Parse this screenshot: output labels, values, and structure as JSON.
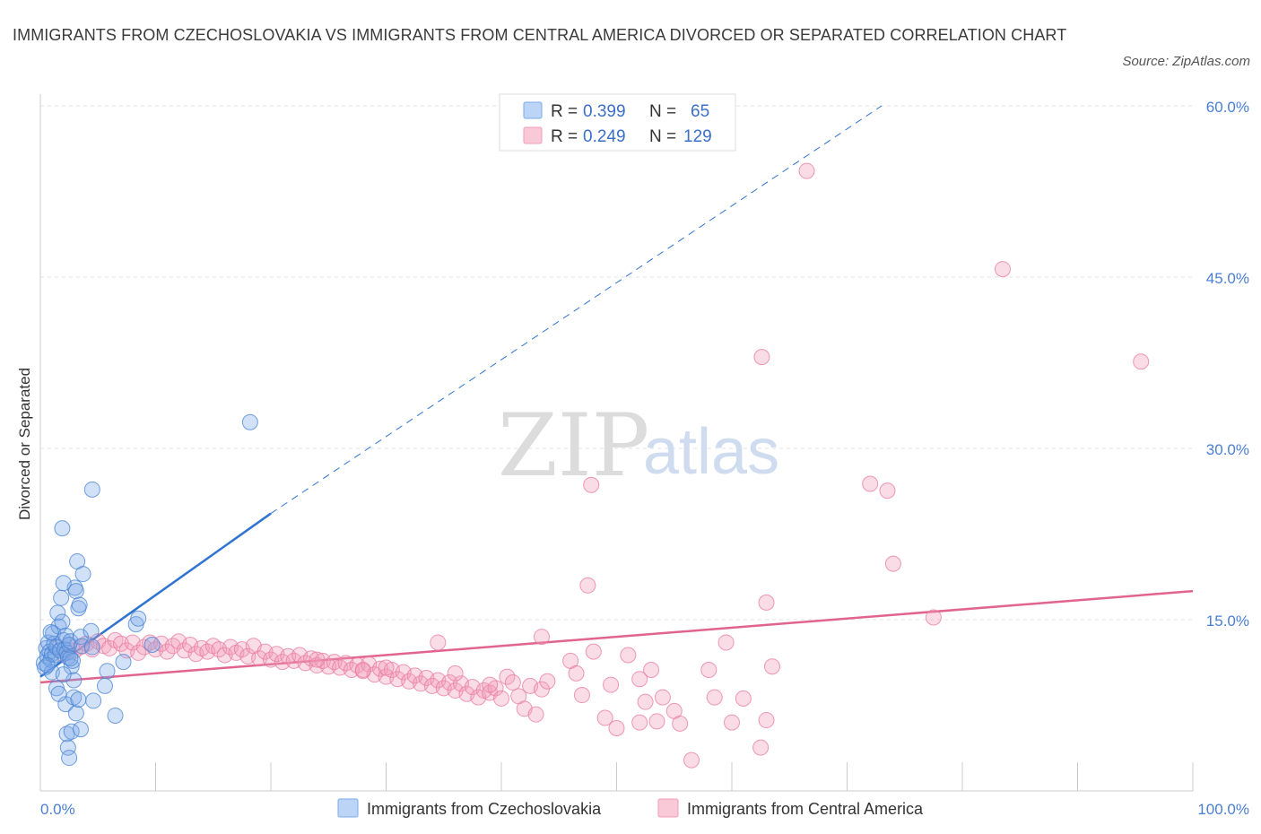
{
  "title": "IMMIGRANTS FROM CZECHOSLOVAKIA VS IMMIGRANTS FROM CENTRAL AMERICA DIVORCED OR SEPARATED CORRELATION CHART",
  "source": "Source: ZipAtlas.com",
  "watermark": {
    "zip": "ZIP",
    "atlas": "atlas"
  },
  "colors": {
    "blue": "#7aaae8",
    "blue_line": "#2f74d0",
    "pink": "#f29bb8",
    "pink_line": "#e0648f",
    "axis_label": "#4a7fd4"
  },
  "legend": {
    "r_label": "R =",
    "n_label": "N =",
    "series": [
      {
        "r": "0.399",
        "n": "65"
      },
      {
        "r": "0.249",
        "n": "129"
      }
    ]
  },
  "chart_data": {
    "type": "scatter",
    "title": "IMMIGRANTS FROM CZECHOSLOVAKIA VS IMMIGRANTS FROM CENTRAL AMERICA DIVORCED OR SEPARATED CORRELATION CHART",
    "xlabel": "",
    "ylabel": "Divorced or Separated",
    "xlim": [
      0,
      100
    ],
    "ylim": [
      0,
      60
    ],
    "x_tick_labels": [
      "0.0%",
      "100.0%"
    ],
    "y_ticks": [
      15,
      30,
      45,
      60
    ],
    "y_tick_labels": [
      "15.0%",
      "30.0%",
      "45.0%",
      "60.0%"
    ],
    "grid": "horizontal dashed",
    "legend_position": "top-center",
    "series": [
      {
        "name": "Immigrants from Czechoslovakia",
        "r": 0.399,
        "n": 65,
        "trend": {
          "x0": 0,
          "y0": 10.0,
          "x1": 20,
          "y1": 24.3,
          "extended_to_x": 73,
          "extended_to_y": 60
        },
        "points": [
          [
            0.3,
            11.2
          ],
          [
            0.4,
            10.8
          ],
          [
            0.5,
            12.5
          ],
          [
            0.6,
            11.8
          ],
          [
            0.7,
            13.0
          ],
          [
            0.8,
            12.2
          ],
          [
            0.9,
            11.5
          ],
          [
            1.0,
            12.0
          ],
          [
            1.1,
            13.8
          ],
          [
            1.2,
            12.9
          ],
          [
            1.3,
            11.9
          ],
          [
            1.4,
            12.6
          ],
          [
            1.5,
            15.6
          ],
          [
            1.6,
            14.4
          ],
          [
            1.7,
            12.3
          ],
          [
            1.8,
            16.9
          ],
          [
            1.9,
            14.8
          ],
          [
            2.0,
            13.2
          ],
          [
            2.1,
            12.4
          ],
          [
            2.2,
            13.6
          ],
          [
            2.3,
            12.1
          ],
          [
            2.4,
            11.7
          ],
          [
            2.5,
            12.8
          ],
          [
            2.6,
            13.1
          ],
          [
            2.7,
            10.9
          ],
          [
            2.8,
            11.4
          ],
          [
            2.9,
            9.7
          ],
          [
            3.0,
            17.8
          ],
          [
            3.1,
            17.5
          ],
          [
            3.2,
            20.1
          ],
          [
            3.3,
            16.0
          ],
          [
            3.4,
            16.3
          ],
          [
            3.5,
            13.5
          ],
          [
            3.6,
            12.7
          ],
          [
            1.9,
            23.0
          ],
          [
            2.0,
            18.2
          ],
          [
            2.2,
            7.6
          ],
          [
            2.3,
            5.0
          ],
          [
            2.4,
            3.8
          ],
          [
            2.5,
            2.9
          ],
          [
            2.7,
            5.2
          ],
          [
            2.9,
            8.2
          ],
          [
            3.1,
            6.8
          ],
          [
            3.5,
            5.4
          ],
          [
            3.7,
            19.0
          ],
          [
            4.4,
            14.0
          ],
          [
            4.5,
            12.6
          ],
          [
            4.6,
            7.9
          ],
          [
            5.6,
            9.2
          ],
          [
            5.8,
            10.5
          ],
          [
            6.5,
            6.6
          ],
          [
            7.2,
            11.3
          ],
          [
            8.3,
            14.6
          ],
          [
            8.5,
            15.1
          ],
          [
            9.7,
            12.8
          ],
          [
            18.2,
            32.3
          ],
          [
            4.5,
            26.4
          ],
          [
            1.0,
            10.4
          ],
          [
            0.6,
            11.0
          ],
          [
            0.9,
            13.9
          ],
          [
            1.4,
            9.0
          ],
          [
            1.6,
            8.5
          ],
          [
            2.0,
            10.2
          ],
          [
            2.6,
            11.6
          ],
          [
            3.3,
            8.0
          ]
        ]
      },
      {
        "name": "Immigrants from Central America",
        "r": 0.249,
        "n": 129,
        "trend": {
          "x0": 0,
          "y0": 9.5,
          "x1": 100,
          "y1": 17.5
        },
        "points": [
          [
            1.5,
            12.5
          ],
          [
            2.0,
            12.0
          ],
          [
            2.5,
            12.8
          ],
          [
            3.0,
            12.3
          ],
          [
            3.5,
            12.6
          ],
          [
            4.0,
            12.9
          ],
          [
            4.5,
            12.4
          ],
          [
            5.0,
            13.1
          ],
          [
            5.5,
            12.7
          ],
          [
            6.0,
            12.5
          ],
          [
            6.5,
            13.2
          ],
          [
            7.0,
            12.9
          ],
          [
            7.5,
            12.3
          ],
          [
            8.0,
            13.0
          ],
          [
            8.5,
            12.1
          ],
          [
            9.0,
            12.6
          ],
          [
            9.5,
            13.0
          ],
          [
            10.0,
            12.4
          ],
          [
            10.5,
            12.9
          ],
          [
            11.0,
            12.2
          ],
          [
            11.5,
            12.7
          ],
          [
            12.0,
            13.1
          ],
          [
            12.5,
            12.3
          ],
          [
            13.0,
            12.8
          ],
          [
            13.5,
            12.0
          ],
          [
            14.0,
            12.5
          ],
          [
            14.5,
            12.2
          ],
          [
            15.0,
            12.7
          ],
          [
            15.5,
            12.4
          ],
          [
            16.0,
            11.9
          ],
          [
            16.5,
            12.6
          ],
          [
            17.0,
            12.1
          ],
          [
            17.5,
            12.4
          ],
          [
            18.0,
            11.8
          ],
          [
            18.5,
            12.7
          ],
          [
            19.0,
            11.6
          ],
          [
            19.5,
            12.2
          ],
          [
            20.0,
            11.5
          ],
          [
            20.5,
            12.0
          ],
          [
            21.0,
            11.3
          ],
          [
            21.5,
            11.8
          ],
          [
            22.0,
            11.4
          ],
          [
            22.5,
            11.9
          ],
          [
            23.0,
            11.2
          ],
          [
            23.5,
            11.6
          ],
          [
            24.0,
            11.0
          ],
          [
            24.5,
            11.4
          ],
          [
            25.0,
            10.9
          ],
          [
            25.5,
            11.3
          ],
          [
            26.0,
            10.8
          ],
          [
            26.5,
            11.2
          ],
          [
            27.0,
            10.6
          ],
          [
            27.5,
            11.0
          ],
          [
            28.0,
            10.5
          ],
          [
            28.5,
            11.1
          ],
          [
            29.0,
            10.2
          ],
          [
            29.5,
            10.7
          ],
          [
            30.0,
            10.0
          ],
          [
            30.5,
            10.6
          ],
          [
            31.0,
            9.8
          ],
          [
            31.5,
            10.4
          ],
          [
            32.0,
            9.6
          ],
          [
            32.5,
            10.1
          ],
          [
            33.0,
            9.4
          ],
          [
            33.5,
            9.9
          ],
          [
            34.0,
            9.2
          ],
          [
            34.5,
            9.7
          ],
          [
            35.0,
            9.0
          ],
          [
            35.5,
            9.5
          ],
          [
            36.0,
            8.8
          ],
          [
            36.5,
            9.4
          ],
          [
            37.0,
            8.5
          ],
          [
            37.5,
            9.1
          ],
          [
            38.0,
            8.2
          ],
          [
            38.5,
            8.8
          ],
          [
            39.0,
            8.6
          ],
          [
            39.5,
            9.0
          ],
          [
            40.0,
            8.1
          ],
          [
            40.5,
            10.0
          ],
          [
            41.0,
            9.5
          ],
          [
            41.5,
            8.3
          ],
          [
            42.0,
            7.2
          ],
          [
            42.5,
            9.2
          ],
          [
            43.0,
            6.7
          ],
          [
            43.5,
            8.9
          ],
          [
            24.0,
            11.5
          ],
          [
            28.0,
            10.6
          ],
          [
            30.0,
            10.8
          ],
          [
            34.5,
            13.0
          ],
          [
            43.5,
            13.5
          ],
          [
            46.0,
            11.4
          ],
          [
            46.5,
            10.3
          ],
          [
            47.0,
            8.4
          ],
          [
            47.5,
            18.0
          ],
          [
            48.0,
            12.2
          ],
          [
            49.0,
            6.4
          ],
          [
            49.5,
            9.3
          ],
          [
            50.0,
            5.5
          ],
          [
            51.0,
            11.9
          ],
          [
            52.0,
            6.0
          ],
          [
            52.5,
            7.8
          ],
          [
            53.0,
            10.6
          ],
          [
            53.5,
            6.1
          ],
          [
            54.0,
            8.2
          ],
          [
            55.0,
            7.0
          ],
          [
            55.5,
            5.9
          ],
          [
            56.5,
            2.7
          ],
          [
            58.0,
            10.6
          ],
          [
            58.5,
            8.2
          ],
          [
            59.5,
            13.0
          ],
          [
            60.0,
            6.0
          ],
          [
            61.0,
            8.1
          ],
          [
            62.5,
            3.8
          ],
          [
            63.0,
            6.2
          ],
          [
            63.5,
            10.9
          ],
          [
            47.8,
            26.8
          ],
          [
            62.6,
            38.0
          ],
          [
            66.5,
            54.3
          ],
          [
            72.0,
            26.9
          ],
          [
            73.5,
            26.3
          ],
          [
            74.0,
            19.9
          ],
          [
            77.5,
            15.2
          ],
          [
            83.5,
            45.7
          ],
          [
            95.5,
            37.6
          ],
          [
            63.0,
            16.5
          ],
          [
            52.0,
            9.8
          ],
          [
            39.0,
            9.3
          ],
          [
            44.0,
            9.6
          ],
          [
            36.0,
            10.3
          ]
        ]
      }
    ]
  }
}
